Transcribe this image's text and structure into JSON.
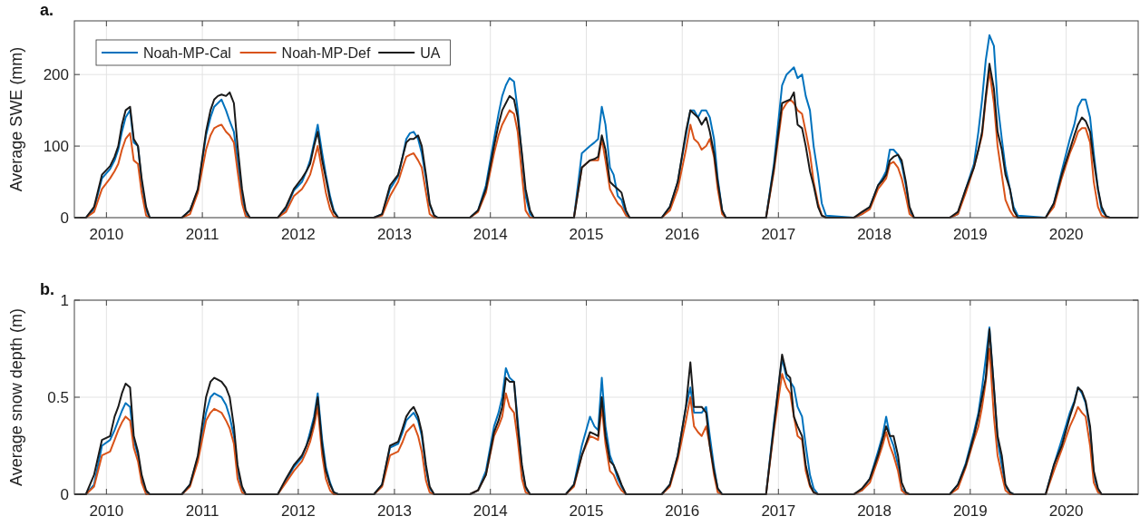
{
  "chart_data": [
    {
      "type": "line",
      "title": "a.",
      "ylabel": "Average SWE (mm)",
      "legend": "top left",
      "grid": true,
      "xlim": [
        "2009-09-01",
        "2020-10-01"
      ],
      "xticks": [
        "2010",
        "2011",
        "2012",
        "2013",
        "2014",
        "2015",
        "2016",
        "2017",
        "2018",
        "2019",
        "2020"
      ],
      "ylim": [
        0,
        275
      ],
      "yticks": [
        0,
        100,
        200
      ],
      "x": [
        "2009-09-01",
        "2009-10-15",
        "2009-11-15",
        "2009-12-15",
        "2010-01-15",
        "2010-02-01",
        "2010-02-15",
        "2010-03-01",
        "2010-03-15",
        "2010-04-01",
        "2010-04-15",
        "2010-05-01",
        "2010-05-15",
        "2010-06-01",
        "2010-06-15",
        "2010-07-01",
        "2010-10-15",
        "2010-11-15",
        "2010-12-15",
        "2011-01-15",
        "2011-02-01",
        "2011-02-15",
        "2011-03-01",
        "2011-03-15",
        "2011-04-01",
        "2011-04-15",
        "2011-05-01",
        "2011-05-15",
        "2011-06-01",
        "2011-06-15",
        "2011-07-01",
        "2011-10-15",
        "2011-11-15",
        "2011-12-15",
        "2012-01-15",
        "2012-02-01",
        "2012-02-15",
        "2012-03-01",
        "2012-03-15",
        "2012-04-01",
        "2012-04-15",
        "2012-05-01",
        "2012-05-15",
        "2012-06-01",
        "2012-06-15",
        "2012-07-01",
        "2012-10-15",
        "2012-11-15",
        "2012-12-15",
        "2013-01-15",
        "2013-02-01",
        "2013-02-15",
        "2013-03-01",
        "2013-03-15",
        "2013-04-01",
        "2013-04-15",
        "2013-05-01",
        "2013-05-15",
        "2013-06-01",
        "2013-06-15",
        "2013-07-01",
        "2013-10-15",
        "2013-11-15",
        "2013-12-15",
        "2014-01-15",
        "2014-02-01",
        "2014-02-15",
        "2014-03-01",
        "2014-03-15",
        "2014-04-01",
        "2014-04-15",
        "2014-05-01",
        "2014-05-15",
        "2014-06-01",
        "2014-06-15",
        "2014-07-01",
        "2014-10-15",
        "2014-11-15",
        "2014-12-15",
        "2015-01-15",
        "2015-02-01",
        "2015-02-15",
        "2015-03-01",
        "2015-03-15",
        "2015-04-01",
        "2015-04-15",
        "2015-05-01",
        "2015-05-15",
        "2015-06-01",
        "2015-06-15",
        "2015-07-01",
        "2015-10-15",
        "2015-11-15",
        "2015-12-15",
        "2016-01-15",
        "2016-02-01",
        "2016-02-15",
        "2016-03-01",
        "2016-03-15",
        "2016-04-01",
        "2016-04-15",
        "2016-05-01",
        "2016-05-15",
        "2016-06-01",
        "2016-06-15",
        "2016-07-01",
        "2016-10-15",
        "2016-11-15",
        "2016-12-15",
        "2017-01-15",
        "2017-02-01",
        "2017-02-15",
        "2017-03-01",
        "2017-03-15",
        "2017-04-01",
        "2017-04-15",
        "2017-05-01",
        "2017-05-15",
        "2017-06-01",
        "2017-06-15",
        "2017-07-01",
        "2017-10-15",
        "2017-11-15",
        "2017-12-15",
        "2018-01-15",
        "2018-02-01",
        "2018-02-15",
        "2018-03-01",
        "2018-03-15",
        "2018-04-01",
        "2018-04-15",
        "2018-05-01",
        "2018-05-15",
        "2018-06-01",
        "2018-06-15",
        "2018-07-01",
        "2018-10-15",
        "2018-11-15",
        "2018-12-15",
        "2019-01-15",
        "2019-02-01",
        "2019-02-15",
        "2019-03-01",
        "2019-03-15",
        "2019-04-01",
        "2019-04-15",
        "2019-05-01",
        "2019-05-15",
        "2019-06-01",
        "2019-06-15",
        "2019-07-01",
        "2019-10-15",
        "2019-11-15",
        "2019-12-15",
        "2020-01-15",
        "2020-02-01",
        "2020-02-15",
        "2020-03-01",
        "2020-03-15",
        "2020-04-01",
        "2020-04-15",
        "2020-05-01",
        "2020-05-15",
        "2020-06-01",
        "2020-06-15",
        "2020-07-01",
        "2020-10-01"
      ],
      "series": [
        {
          "name": "Noah-MP-Cal",
          "color": "#0072bd",
          "values": [
            0,
            0,
            12,
            55,
            68,
            80,
            95,
            120,
            140,
            150,
            105,
            100,
            50,
            10,
            0,
            0,
            0,
            10,
            38,
            115,
            140,
            155,
            160,
            165,
            150,
            135,
            120,
            80,
            30,
            5,
            0,
            0,
            12,
            38,
            50,
            65,
            80,
            105,
            130,
            90,
            60,
            30,
            10,
            0,
            0,
            0,
            0,
            5,
            40,
            58,
            85,
            110,
            118,
            120,
            110,
            90,
            55,
            18,
            3,
            0,
            0,
            0,
            10,
            45,
            110,
            145,
            170,
            185,
            195,
            190,
            150,
            85,
            30,
            5,
            0,
            0,
            0,
            0,
            90,
            100,
            105,
            110,
            155,
            130,
            70,
            60,
            30,
            25,
            5,
            0,
            0,
            0,
            15,
            50,
            115,
            150,
            150,
            140,
            150,
            150,
            140,
            110,
            55,
            10,
            0,
            0,
            0,
            0,
            75,
            185,
            200,
            205,
            210,
            195,
            200,
            170,
            150,
            100,
            60,
            20,
            3,
            0,
            5,
            15,
            45,
            55,
            65,
            95,
            95,
            88,
            75,
            45,
            10,
            0,
            0,
            0,
            0,
            5,
            40,
            75,
            120,
            165,
            220,
            255,
            240,
            160,
            110,
            70,
            40,
            15,
            3,
            0,
            20,
            65,
            110,
            130,
            155,
            165,
            165,
            140,
            90,
            40,
            10,
            2,
            0,
            null,
            null
          ]
        },
        {
          "name": "Noah-MP-Def",
          "color": "#d95319",
          "values": [
            0,
            0,
            8,
            40,
            55,
            65,
            75,
            95,
            110,
            118,
            80,
            75,
            35,
            3,
            0,
            0,
            0,
            5,
            35,
            95,
            115,
            125,
            128,
            130,
            120,
            115,
            105,
            65,
            20,
            2,
            0,
            0,
            8,
            30,
            40,
            50,
            60,
            80,
            100,
            65,
            35,
            12,
            2,
            0,
            0,
            0,
            0,
            3,
            30,
            50,
            70,
            85,
            88,
            90,
            80,
            70,
            35,
            5,
            0,
            0,
            0,
            0,
            8,
            35,
            90,
            115,
            130,
            140,
            150,
            145,
            120,
            60,
            10,
            0,
            0,
            0,
            0,
            0,
            70,
            80,
            80,
            80,
            110,
            80,
            40,
            30,
            20,
            15,
            3,
            0,
            0,
            0,
            10,
            40,
            95,
            130,
            110,
            105,
            95,
            100,
            110,
            85,
            40,
            5,
            0,
            0,
            0,
            0,
            65,
            150,
            160,
            165,
            160,
            150,
            145,
            120,
            90,
            50,
            20,
            3,
            0,
            0,
            5,
            12,
            40,
            48,
            55,
            75,
            78,
            70,
            55,
            30,
            5,
            0,
            0,
            0,
            0,
            5,
            35,
            70,
            95,
            115,
            165,
            205,
            160,
            100,
            60,
            25,
            10,
            2,
            0,
            0,
            15,
            55,
            90,
            105,
            120,
            125,
            125,
            105,
            50,
            15,
            3,
            0,
            0,
            null,
            null
          ]
        },
        {
          "name": "UA",
          "color": "#1a1a1a",
          "values": [
            0,
            0,
            15,
            60,
            72,
            85,
            100,
            130,
            150,
            155,
            110,
            100,
            55,
            15,
            0,
            0,
            0,
            10,
            40,
            120,
            150,
            165,
            170,
            172,
            170,
            175,
            160,
            100,
            40,
            10,
            0,
            0,
            15,
            40,
            55,
            65,
            75,
            100,
            120,
            80,
            55,
            25,
            8,
            0,
            0,
            0,
            0,
            5,
            45,
            60,
            85,
            105,
            110,
            110,
            115,
            100,
            60,
            20,
            3,
            0,
            0,
            0,
            10,
            40,
            100,
            130,
            150,
            160,
            170,
            165,
            140,
            90,
            40,
            10,
            0,
            0,
            0,
            0,
            70,
            80,
            82,
            85,
            115,
            95,
            50,
            45,
            40,
            35,
            10,
            0,
            0,
            0,
            15,
            50,
            120,
            150,
            145,
            140,
            130,
            140,
            120,
            90,
            50,
            10,
            0,
            0,
            0,
            0,
            70,
            160,
            163,
            165,
            175,
            130,
            125,
            100,
            65,
            45,
            15,
            3,
            0,
            0,
            8,
            15,
            45,
            52,
            60,
            80,
            85,
            88,
            80,
            50,
            15,
            0,
            0,
            0,
            0,
            8,
            40,
            70,
            95,
            120,
            170,
            215,
            180,
            120,
            95,
            60,
            40,
            10,
            0,
            0,
            20,
            60,
            95,
            115,
            130,
            140,
            135,
            120,
            80,
            40,
            15,
            2,
            0,
            0,
            0
          ]
        }
      ]
    },
    {
      "type": "line",
      "title": "b.",
      "ylabel": "Average snow depth (m)",
      "grid": true,
      "xlim": [
        "2009-09-01",
        "2020-10-01"
      ],
      "xticks": [
        "2010",
        "2011",
        "2012",
        "2013",
        "2014",
        "2015",
        "2016",
        "2017",
        "2018",
        "2019",
        "2020"
      ],
      "ylim": [
        0,
        1
      ],
      "yticks": [
        0,
        0.5,
        1
      ],
      "x": [
        "2009-09-01",
        "2009-10-15",
        "2009-11-15",
        "2009-12-15",
        "2010-01-15",
        "2010-02-01",
        "2010-02-15",
        "2010-03-01",
        "2010-03-15",
        "2010-04-01",
        "2010-04-15",
        "2010-05-01",
        "2010-05-15",
        "2010-06-01",
        "2010-06-15",
        "2010-07-01",
        "2010-10-15",
        "2010-11-15",
        "2010-12-15",
        "2011-01-15",
        "2011-02-01",
        "2011-02-15",
        "2011-03-01",
        "2011-03-15",
        "2011-04-01",
        "2011-04-15",
        "2011-05-01",
        "2011-05-15",
        "2011-06-01",
        "2011-06-15",
        "2011-07-01",
        "2011-10-15",
        "2011-11-15",
        "2011-12-15",
        "2012-01-15",
        "2012-02-01",
        "2012-02-15",
        "2012-03-01",
        "2012-03-15",
        "2012-04-01",
        "2012-04-15",
        "2012-05-01",
        "2012-05-15",
        "2012-06-01",
        "2012-06-15",
        "2012-07-01",
        "2012-10-15",
        "2012-11-15",
        "2012-12-15",
        "2013-01-15",
        "2013-02-01",
        "2013-02-15",
        "2013-03-01",
        "2013-03-15",
        "2013-04-01",
        "2013-04-15",
        "2013-05-01",
        "2013-05-15",
        "2013-06-01",
        "2013-06-15",
        "2013-07-01",
        "2013-10-15",
        "2013-11-15",
        "2013-12-15",
        "2014-01-15",
        "2014-02-01",
        "2014-02-15",
        "2014-03-01",
        "2014-03-15",
        "2014-04-01",
        "2014-04-15",
        "2014-05-01",
        "2014-05-15",
        "2014-06-01",
        "2014-06-15",
        "2014-07-01",
        "2014-10-15",
        "2014-11-15",
        "2014-12-15",
        "2015-01-15",
        "2015-02-01",
        "2015-02-15",
        "2015-03-01",
        "2015-03-15",
        "2015-04-01",
        "2015-04-15",
        "2015-05-01",
        "2015-05-15",
        "2015-06-01",
        "2015-06-15",
        "2015-07-01",
        "2015-10-15",
        "2015-11-15",
        "2015-12-15",
        "2016-01-15",
        "2016-02-01",
        "2016-02-15",
        "2016-03-01",
        "2016-03-15",
        "2016-04-01",
        "2016-04-15",
        "2016-05-01",
        "2016-05-15",
        "2016-06-01",
        "2016-06-15",
        "2016-07-01",
        "2016-10-15",
        "2016-11-15",
        "2016-12-15",
        "2017-01-15",
        "2017-02-01",
        "2017-02-15",
        "2017-03-01",
        "2017-03-15",
        "2017-04-01",
        "2017-04-15",
        "2017-05-01",
        "2017-05-15",
        "2017-06-01",
        "2017-06-15",
        "2017-07-01",
        "2017-10-15",
        "2017-11-15",
        "2017-12-15",
        "2018-01-15",
        "2018-02-01",
        "2018-02-15",
        "2018-03-01",
        "2018-03-15",
        "2018-04-01",
        "2018-04-15",
        "2018-05-01",
        "2018-05-15",
        "2018-06-01",
        "2018-06-15",
        "2018-07-01",
        "2018-10-15",
        "2018-11-15",
        "2018-12-15",
        "2019-01-15",
        "2019-02-01",
        "2019-02-15",
        "2019-03-01",
        "2019-03-15",
        "2019-04-01",
        "2019-04-15",
        "2019-05-01",
        "2019-05-15",
        "2019-06-01",
        "2019-06-15",
        "2019-07-01",
        "2019-10-15",
        "2019-11-15",
        "2019-12-15",
        "2020-01-15",
        "2020-02-01",
        "2020-02-15",
        "2020-03-01",
        "2020-03-15",
        "2020-04-01",
        "2020-04-15",
        "2020-05-01",
        "2020-05-15",
        "2020-06-01",
        "2020-06-15",
        "2020-07-01",
        "2020-10-01"
      ],
      "series": [
        {
          "color": "#0072bd",
          "values": [
            0,
            0,
            0.05,
            0.25,
            0.28,
            0.33,
            0.38,
            0.43,
            0.47,
            0.45,
            0.28,
            0.2,
            0.08,
            0.01,
            0,
            0,
            0,
            0.05,
            0.19,
            0.42,
            0.5,
            0.52,
            0.51,
            0.5,
            0.46,
            0.4,
            0.3,
            0.12,
            0.03,
            0,
            0,
            0,
            0.07,
            0.14,
            0.19,
            0.25,
            0.32,
            0.4,
            0.52,
            0.28,
            0.14,
            0.06,
            0.01,
            0,
            0,
            0,
            0,
            0.05,
            0.24,
            0.26,
            0.32,
            0.38,
            0.4,
            0.42,
            0.38,
            0.3,
            0.13,
            0.03,
            0,
            0,
            0,
            0,
            0.02,
            0.12,
            0.35,
            0.42,
            0.5,
            0.65,
            0.6,
            0.58,
            0.38,
            0.14,
            0.03,
            0,
            0,
            0,
            0,
            0.05,
            0.25,
            0.4,
            0.35,
            0.33,
            0.6,
            0.35,
            0.2,
            0.15,
            0.08,
            0.04,
            0,
            0,
            0,
            0,
            0.05,
            0.2,
            0.45,
            0.55,
            0.42,
            0.42,
            0.42,
            0.45,
            0.3,
            0.14,
            0.03,
            0,
            0,
            0,
            0,
            0,
            0.37,
            0.7,
            0.6,
            0.58,
            0.55,
            0.45,
            0.4,
            0.25,
            0.1,
            0.03,
            0,
            0,
            0,
            0,
            0.02,
            0.08,
            0.22,
            0.3,
            0.4,
            0.3,
            0.25,
            0.15,
            0.03,
            0,
            0,
            0,
            0,
            0,
            0,
            0.05,
            0.16,
            0.32,
            0.42,
            0.55,
            0.7,
            0.86,
            0.55,
            0.28,
            0.15,
            0.04,
            0.01,
            0,
            0,
            0,
            0.15,
            0.28,
            0.42,
            0.48,
            0.55,
            0.52,
            0.47,
            0.33,
            0.1,
            0.02,
            0,
            null,
            null,
            null,
            null
          ]
        },
        {
          "color": "#d95319",
          "values": [
            0,
            0,
            0.04,
            0.2,
            0.22,
            0.28,
            0.33,
            0.37,
            0.4,
            0.38,
            0.24,
            0.17,
            0.06,
            0,
            0,
            0,
            0,
            0.04,
            0.17,
            0.38,
            0.42,
            0.44,
            0.43,
            0.42,
            0.38,
            0.34,
            0.26,
            0.08,
            0.01,
            0,
            0,
            0,
            0.06,
            0.12,
            0.17,
            0.22,
            0.27,
            0.35,
            0.45,
            0.2,
            0.08,
            0.02,
            0,
            0,
            0,
            0,
            0,
            0.04,
            0.2,
            0.22,
            0.27,
            0.32,
            0.34,
            0.36,
            0.3,
            0.22,
            0.07,
            0.01,
            0,
            0,
            0,
            0,
            0.02,
            0.1,
            0.3,
            0.35,
            0.4,
            0.52,
            0.45,
            0.42,
            0.28,
            0.08,
            0.01,
            0,
            0,
            0,
            0,
            0.04,
            0.2,
            0.3,
            0.29,
            0.28,
            0.45,
            0.26,
            0.12,
            0.1,
            0.05,
            0.02,
            0,
            0,
            0,
            0,
            0.04,
            0.18,
            0.38,
            0.5,
            0.35,
            0.32,
            0.3,
            0.35,
            0.25,
            0.1,
            0.01,
            0,
            0,
            0,
            0,
            0,
            0.33,
            0.62,
            0.55,
            0.52,
            0.4,
            0.3,
            0.28,
            0.12,
            0.04,
            0.01,
            0,
            0,
            0,
            0,
            0.02,
            0.06,
            0.18,
            0.25,
            0.32,
            0.25,
            0.2,
            0.12,
            0.02,
            0,
            0,
            0,
            0,
            0,
            0,
            0.03,
            0.14,
            0.28,
            0.35,
            0.45,
            0.58,
            0.75,
            0.4,
            0.2,
            0.1,
            0.02,
            0,
            0,
            0,
            0,
            0.12,
            0.23,
            0.35,
            0.4,
            0.45,
            0.42,
            0.4,
            0.25,
            0.06,
            0.01,
            0,
            null,
            null,
            null,
            null
          ]
        },
        {
          "color": "#1a1a1a",
          "values": [
            0,
            0,
            0.1,
            0.28,
            0.3,
            0.4,
            0.45,
            0.52,
            0.57,
            0.55,
            0.3,
            0.22,
            0.1,
            0.02,
            0,
            0,
            0,
            0.05,
            0.2,
            0.5,
            0.58,
            0.6,
            0.59,
            0.58,
            0.55,
            0.5,
            0.35,
            0.15,
            0.04,
            0,
            0,
            0,
            0.08,
            0.15,
            0.2,
            0.25,
            0.3,
            0.38,
            0.5,
            0.25,
            0.12,
            0.05,
            0.01,
            0,
            0,
            0,
            0,
            0.05,
            0.25,
            0.27,
            0.34,
            0.4,
            0.43,
            0.45,
            0.4,
            0.32,
            0.15,
            0.04,
            0,
            0,
            0,
            0,
            0.02,
            0.1,
            0.32,
            0.38,
            0.45,
            0.6,
            0.58,
            0.58,
            0.35,
            0.15,
            0.04,
            0,
            0,
            0,
            0,
            0.05,
            0.2,
            0.32,
            0.31,
            0.3,
            0.5,
            0.3,
            0.17,
            0.15,
            0.1,
            0.05,
            0,
            0,
            0,
            0,
            0.05,
            0.2,
            0.45,
            0.68,
            0.45,
            0.45,
            0.45,
            0.42,
            0.25,
            0.12,
            0.03,
            0,
            0,
            0,
            0,
            0,
            0.35,
            0.72,
            0.62,
            0.6,
            0.4,
            0.35,
            0.3,
            0.15,
            0.05,
            0.01,
            0,
            0,
            0,
            0,
            0.03,
            0.08,
            0.2,
            0.28,
            0.35,
            0.3,
            0.3,
            0.2,
            0.06,
            0.01,
            0,
            0,
            0,
            0,
            0,
            0.05,
            0.15,
            0.3,
            0.4,
            0.5,
            0.6,
            0.85,
            0.55,
            0.3,
            0.2,
            0.05,
            0.01,
            0,
            0,
            0,
            0.15,
            0.25,
            0.4,
            0.47,
            0.55,
            0.53,
            0.48,
            0.35,
            0.12,
            0.03,
            0,
            0,
            0,
            0,
            0
          ]
        }
      ]
    }
  ]
}
